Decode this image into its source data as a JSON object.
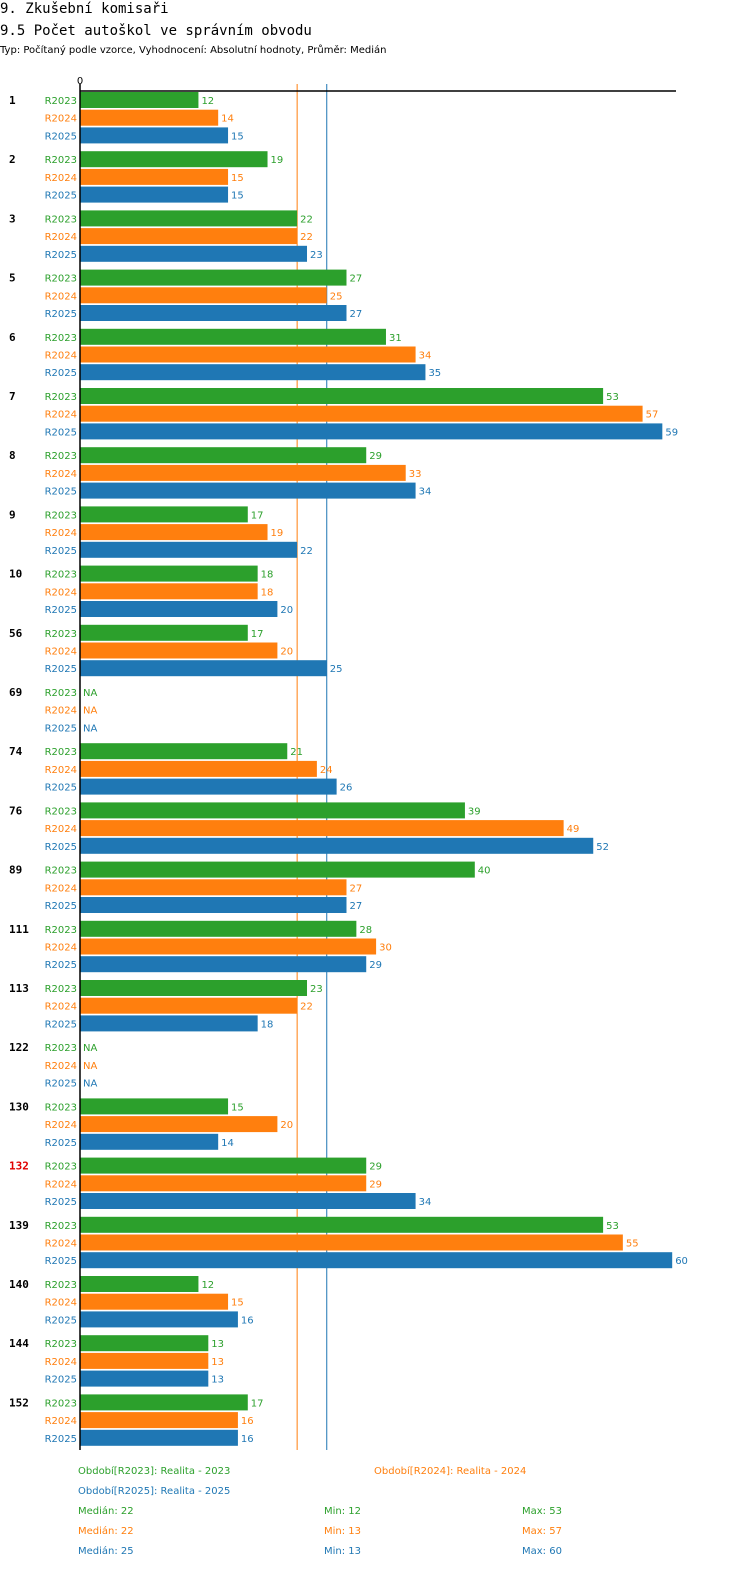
{
  "header": {
    "section": "9. Zkušební komisaři",
    "title": "9.5 Počet autoškol ve správním obvodu",
    "subtitle": "Typ: Počítaný podle vzorce, Vyhodnocení: Absolutní hodnoty, Průměr: Medián"
  },
  "colors": {
    "R2023": "#2ca02c",
    "R2024": "#ff7f0e",
    "R2025": "#1f77b4",
    "highlight": "#e00000",
    "axis": "#000000"
  },
  "chart_data": {
    "type": "bar",
    "orientation": "horizontal",
    "x_axis_zero_label": "0",
    "xlim": [
      0,
      60
    ],
    "series_names": [
      "R2023",
      "R2024",
      "R2025"
    ],
    "highlighted_category": "132",
    "categories": [
      {
        "label": "1",
        "values": [
          12,
          14,
          15
        ]
      },
      {
        "label": "2",
        "values": [
          19,
          15,
          15
        ]
      },
      {
        "label": "3",
        "values": [
          22,
          22,
          23
        ]
      },
      {
        "label": "5",
        "values": [
          27,
          25,
          27
        ]
      },
      {
        "label": "6",
        "values": [
          31,
          34,
          35
        ]
      },
      {
        "label": "7",
        "values": [
          53,
          57,
          59
        ]
      },
      {
        "label": "8",
        "values": [
          29,
          33,
          34
        ]
      },
      {
        "label": "9",
        "values": [
          17,
          19,
          22
        ]
      },
      {
        "label": "10",
        "values": [
          18,
          18,
          20
        ]
      },
      {
        "label": "56",
        "values": [
          17,
          20,
          25
        ]
      },
      {
        "label": "69",
        "values": [
          "NA",
          "NA",
          "NA"
        ]
      },
      {
        "label": "74",
        "values": [
          21,
          24,
          26
        ]
      },
      {
        "label": "76",
        "values": [
          39,
          49,
          52
        ]
      },
      {
        "label": "89",
        "values": [
          40,
          27,
          27
        ]
      },
      {
        "label": "111",
        "values": [
          28,
          30,
          29
        ]
      },
      {
        "label": "113",
        "values": [
          23,
          22,
          18
        ]
      },
      {
        "label": "122",
        "values": [
          "NA",
          "NA",
          "NA"
        ]
      },
      {
        "label": "130",
        "values": [
          15,
          20,
          14
        ]
      },
      {
        "label": "132",
        "values": [
          29,
          29,
          34
        ]
      },
      {
        "label": "139",
        "values": [
          53,
          55,
          60
        ]
      },
      {
        "label": "140",
        "values": [
          12,
          15,
          16
        ]
      },
      {
        "label": "144",
        "values": [
          13,
          13,
          13
        ]
      },
      {
        "label": "152",
        "values": [
          17,
          16,
          16
        ]
      }
    ],
    "reference_lines": [
      {
        "series": "R2024",
        "value": 22
      },
      {
        "series": "R2025",
        "value": 25
      }
    ]
  },
  "legend": {
    "R2023": "Období[R2023]: Realita - 2023",
    "R2024": "Období[R2024]: Realita - 2024",
    "R2025": "Období[R2025]: Realita - 2025"
  },
  "stats": [
    {
      "series": "R2023",
      "median": "Medián: 22",
      "min": "Min: 12",
      "max": "Max: 53"
    },
    {
      "series": "R2024",
      "median": "Medián: 22",
      "min": "Min: 13",
      "max": "Max: 57"
    },
    {
      "series": "R2025",
      "median": "Medián: 25",
      "min": "Min: 13",
      "max": "Max: 60"
    }
  ]
}
